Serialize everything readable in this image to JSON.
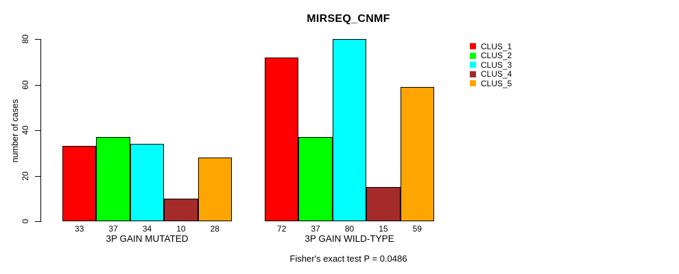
{
  "chart_data": {
    "type": "bar",
    "title": "MIRSEQ_CNMF",
    "ylabel": "number of cases",
    "xlabel": "",
    "ylim": [
      0,
      80
    ],
    "y_ticks": [
      0,
      20,
      40,
      60,
      80
    ],
    "grid": false,
    "legend_position": "right-outside",
    "background": "#FFFFFF",
    "bar_border_color": "#000000",
    "groups": [
      {
        "label": "3P GAIN MUTATED",
        "values": [
          33,
          37,
          34,
          10,
          28
        ]
      },
      {
        "label": "3P GAIN WILD-TYPE",
        "values": [
          72,
          37,
          80,
          15,
          59
        ]
      }
    ],
    "series": [
      {
        "name": "CLUS_1",
        "color": "#FF0000",
        "values": [
          33,
          72
        ]
      },
      {
        "name": "CLUS_2",
        "color": "#00FF00",
        "values": [
          37,
          37
        ]
      },
      {
        "name": "CLUS_3",
        "color": "#00FFFF",
        "values": [
          34,
          80
        ]
      },
      {
        "name": "CLUS_4",
        "color": "#A52A2A",
        "values": [
          10,
          15
        ]
      },
      {
        "name": "CLUS_5",
        "color": "#FFA500",
        "values": [
          28,
          59
        ]
      }
    ],
    "footnote": "Fisher's exact test P = 0.0486"
  }
}
